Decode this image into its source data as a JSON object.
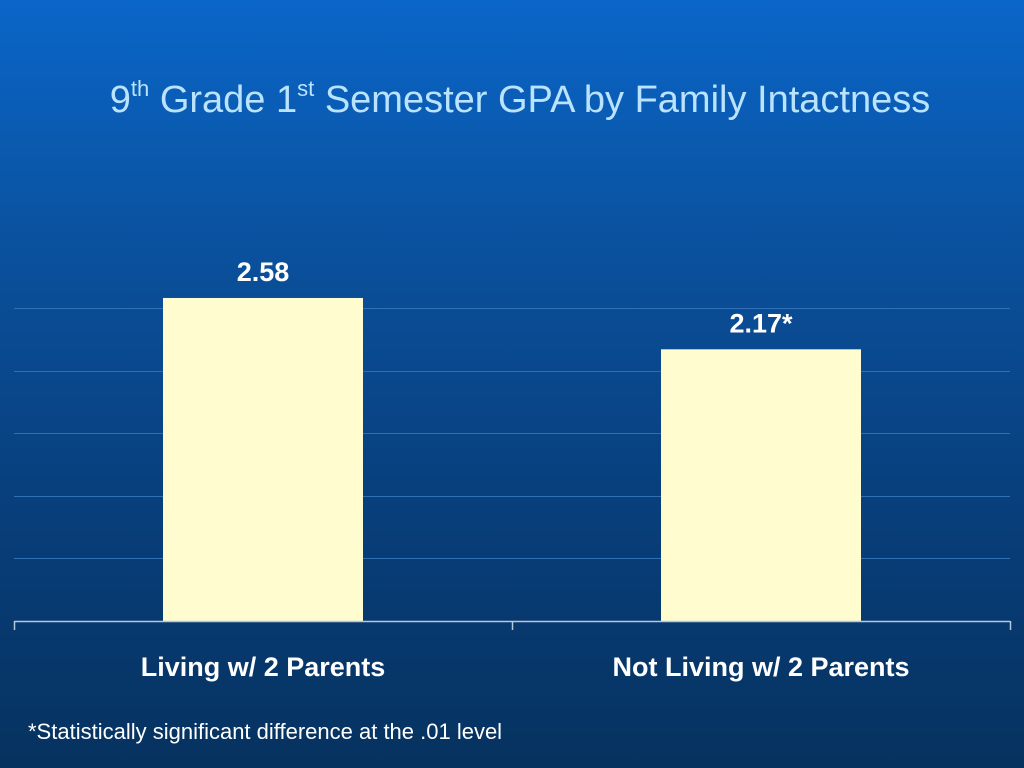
{
  "title": {
    "pre": "9",
    "sup1": "th",
    "mid": " Grade 1",
    "sup2": "st",
    "post": " Semester GPA by Family Intactness"
  },
  "footnote": "*Statistically significant difference at the .01 level",
  "colors": {
    "bar": "#fffdd0",
    "gridline": "#2f6fb3",
    "axis": "#b8c8dc",
    "label_text": "#ffffff",
    "title_text": "#b9e3ff"
  },
  "chart_data": {
    "type": "bar",
    "categories": [
      "Living w/ 2 Parents",
      "Not Living w/ 2 Parents"
    ],
    "values": [
      2.58,
      2.17
    ],
    "data_labels": [
      "2.58",
      "2.17*"
    ],
    "ylim": [
      0,
      2.5
    ],
    "grid": true,
    "legend": "none"
  }
}
